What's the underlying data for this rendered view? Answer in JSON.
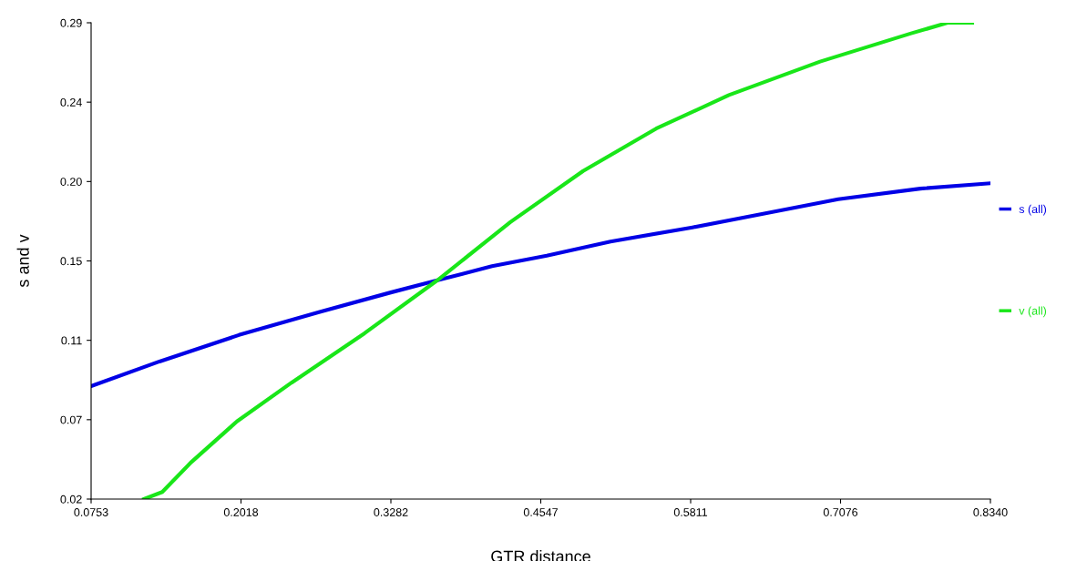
{
  "chart_data": {
    "type": "line",
    "xlabel": "GTR distance",
    "ylabel": "s and v",
    "xlim": [
      0.0753,
      0.834
    ],
    "xticks": [
      {
        "value": 0.0753,
        "label": "0.0753"
      },
      {
        "value": 0.20175,
        "label": "0.2018"
      },
      {
        "value": 0.3282,
        "label": "0.3282"
      },
      {
        "value": 0.45465,
        "label": "0.4547"
      },
      {
        "value": 0.5811,
        "label": "0.5811"
      },
      {
        "value": 0.70755,
        "label": "0.7076"
      },
      {
        "value": 0.834,
        "label": "0.8340"
      }
    ],
    "ylim": [
      0.02,
      0.29
    ],
    "yticks": [
      {
        "value": 0.02,
        "label": "0.02"
      },
      {
        "value": 0.065,
        "label": "0.07"
      },
      {
        "value": 0.11,
        "label": "0.11"
      },
      {
        "value": 0.155,
        "label": "0.15"
      },
      {
        "value": 0.2,
        "label": "0.20"
      },
      {
        "value": 0.245,
        "label": "0.24"
      },
      {
        "value": 0.29,
        "label": "0.29"
      }
    ],
    "grid": false,
    "legend": "right",
    "marker": "none",
    "line_style": "solid",
    "series": [
      {
        "name": "s (all)",
        "color": "#0000e6",
        "x": [
          0.0753,
          0.133,
          0.2,
          0.2675,
          0.3274,
          0.3674,
          0.4135,
          0.4597,
          0.5135,
          0.5826,
          0.6442,
          0.7056,
          0.7748,
          0.834
        ],
        "values": [
          0.084,
          0.098,
          0.113,
          0.126,
          0.137,
          0.144,
          0.152,
          0.158,
          0.166,
          0.174,
          0.182,
          0.19,
          0.196,
          0.199
        ]
      },
      {
        "name": "v (all)",
        "color": "#19e619",
        "x": [
          0.1199,
          0.1353,
          0.1599,
          0.1983,
          0.2444,
          0.306,
          0.3674,
          0.429,
          0.4904,
          0.552,
          0.6134,
          0.6903,
          0.7671,
          0.7978,
          0.8186
        ],
        "values": [
          0.02,
          0.024,
          0.041,
          0.064,
          0.086,
          0.114,
          0.144,
          0.177,
          0.206,
          0.23,
          0.249,
          0.268,
          0.284,
          0.29,
          0.29
        ]
      }
    ]
  }
}
